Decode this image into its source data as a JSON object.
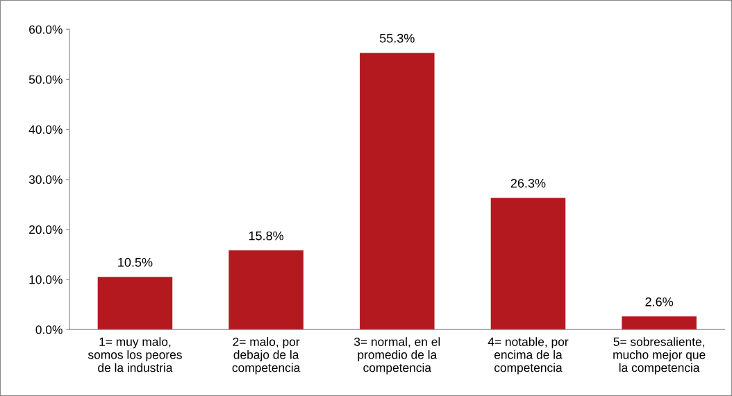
{
  "chart_data": {
    "type": "bar",
    "categories": [
      "1= muy malo,\nsomos los peores\nde la industria",
      "2= malo, por\ndebajo de la\ncompetencia",
      "3= normal, en el\npromedio de la\ncompetencia",
      "4= notable, por\nencima de la\ncompetencia",
      "5= sobresaliente,\nmucho mejor que\nla competencia"
    ],
    "values": [
      10.5,
      15.8,
      55.3,
      26.3,
      2.6
    ],
    "value_labels": [
      "10.5%",
      "15.8%",
      "55.3%",
      "26.3%",
      "2.6%"
    ],
    "color": "#b3191f",
    "ylim": [
      0,
      60
    ],
    "yticks": [
      {
        "value": 0,
        "label": "0.0%"
      },
      {
        "value": 10,
        "label": "10.0%"
      },
      {
        "value": 20,
        "label": "20.0%"
      },
      {
        "value": 30,
        "label": "30.0%"
      },
      {
        "value": 40,
        "label": "40.0%"
      },
      {
        "value": 50,
        "label": "50.0%"
      },
      {
        "value": 60,
        "label": "60.0%"
      }
    ],
    "grid": false,
    "legend": false
  }
}
